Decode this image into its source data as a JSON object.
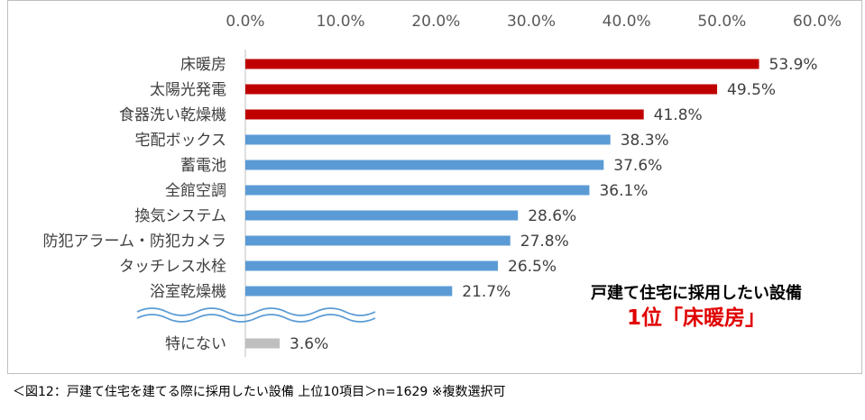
{
  "chart_data": {
    "type": "bar",
    "orientation": "horizontal",
    "x_ticks": [
      "0.0%",
      "10.0%",
      "20.0%",
      "30.0%",
      "40.0%",
      "50.0%",
      "60.0%"
    ],
    "xlim": [
      0,
      60
    ],
    "axis_position": "top",
    "grid": false,
    "categories": [
      "床暖房",
      "太陽光発電",
      "食器洗い乾燥機",
      "宅配ボックス",
      "蓄電池",
      "全館空調",
      "換気システム",
      "防犯アラーム・防犯カメラ",
      "タッチレス水栓",
      "浴室乾燥機",
      "特にない"
    ],
    "values": [
      53.9,
      49.5,
      41.8,
      38.3,
      37.6,
      36.1,
      28.6,
      27.8,
      26.5,
      21.7,
      3.6
    ],
    "value_labels": [
      "53.9%",
      "49.5%",
      "41.8%",
      "38.3%",
      "37.6%",
      "36.1%",
      "28.6%",
      "27.8%",
      "26.5%",
      "21.7%",
      "3.6%"
    ],
    "bar_colors": [
      "#c00000",
      "#c00000",
      "#c00000",
      "#5b9bd5",
      "#5b9bd5",
      "#5b9bd5",
      "#5b9bd5",
      "#5b9bd5",
      "#5b9bd5",
      "#5b9bd5",
      "#bfbfbf"
    ],
    "axis_break_before_last": true
  },
  "colors": {
    "top3": "#c00000",
    "others": "#5b9bd5",
    "none": "#bfbfbf",
    "break_line": "#5b9bd5",
    "callout_highlight": "#e00000"
  },
  "callout": {
    "line1": "戸建て住宅に採用したい設備",
    "line2": "1位「床暖房」"
  },
  "caption": "＜図12：戸建て住宅を建てる際に採用したい設備 上位10項目＞n=1629 ※複数選択可"
}
